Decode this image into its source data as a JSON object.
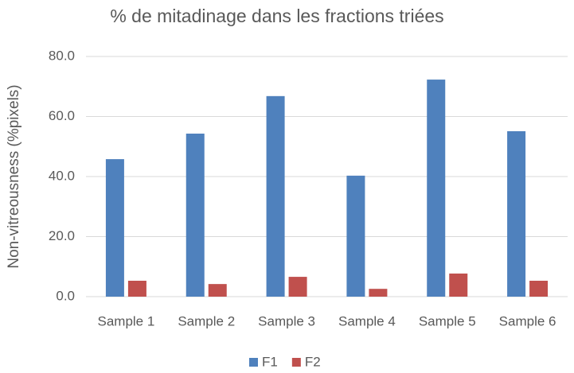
{
  "chart_data": {
    "type": "bar",
    "title": "% de mitadinage dans les fractions triées",
    "y_label": "Non-vitreousness (%pixels)",
    "categories": [
      "Sample 1",
      "Sample 2",
      "Sample 3",
      "Sample 4",
      "Sample 5",
      "Sample 6"
    ],
    "series": [
      {
        "name": "F1",
        "color": "#4f81bd",
        "values": [
          45.8,
          54.3,
          66.8,
          40.3,
          72.3,
          55.1
        ]
      },
      {
        "name": "F2",
        "color": "#c0504d",
        "values": [
          5.3,
          4.2,
          6.6,
          2.6,
          7.7,
          5.3
        ]
      }
    ],
    "ylim": [
      0,
      80
    ],
    "yticks": [
      {
        "value": 0,
        "label": "0.0"
      },
      {
        "value": 20,
        "label": "20.0"
      },
      {
        "value": 40,
        "label": "40.0"
      },
      {
        "value": 60,
        "label": "60.0"
      },
      {
        "value": 80,
        "label": "80.0"
      }
    ],
    "grid": true,
    "legend": "bottom"
  }
}
